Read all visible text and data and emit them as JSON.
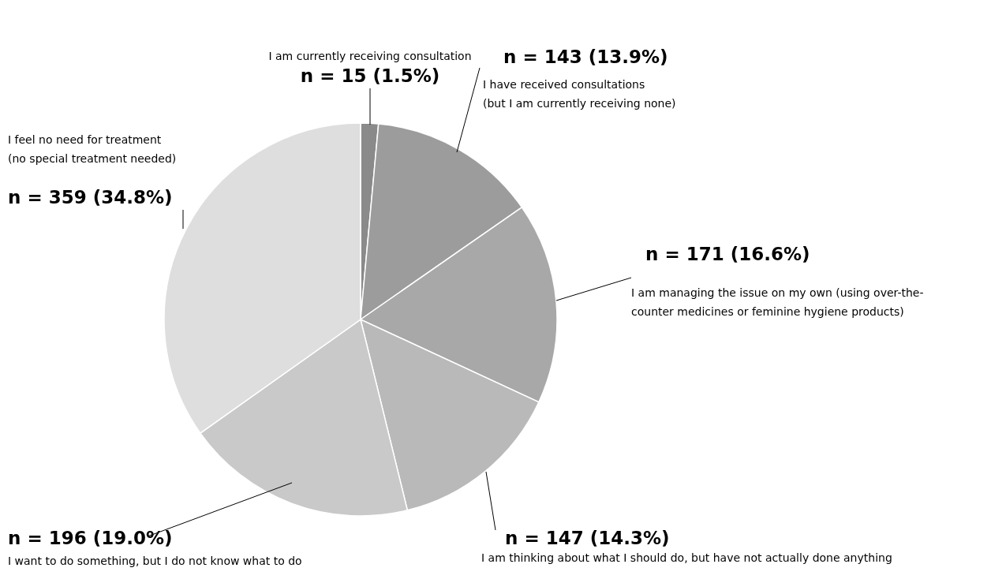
{
  "chart_data": {
    "type": "pie",
    "categories": [
      "I am currently receiving consultation",
      "I have received consultations\n(but I am currently receiving none)",
      "I am managing the issue on my own (using over-the-\ncounter medicines or feminine hygiene products)",
      "I am thinking about what I should do, but have not actually done anything",
      "I want to do something, but I do not know what to do",
      "I feel no need for treatment\n(no special treatment needed)"
    ],
    "values": [
      15,
      143,
      171,
      147,
      196,
      359
    ],
    "value_labels": [
      "n = 15 (1.5%)",
      "n = 143 (13.9%)",
      "n = 171 (16.6%)",
      "n = 147 (14.3%)",
      "n = 196 (19.0%)",
      "n = 359 (34.8%)"
    ],
    "colors": [
      "#8a8a8a",
      "#9c9c9c",
      "#a8a8a8",
      "#b9b9b9",
      "#c9c9c9",
      "#dedede"
    ]
  }
}
